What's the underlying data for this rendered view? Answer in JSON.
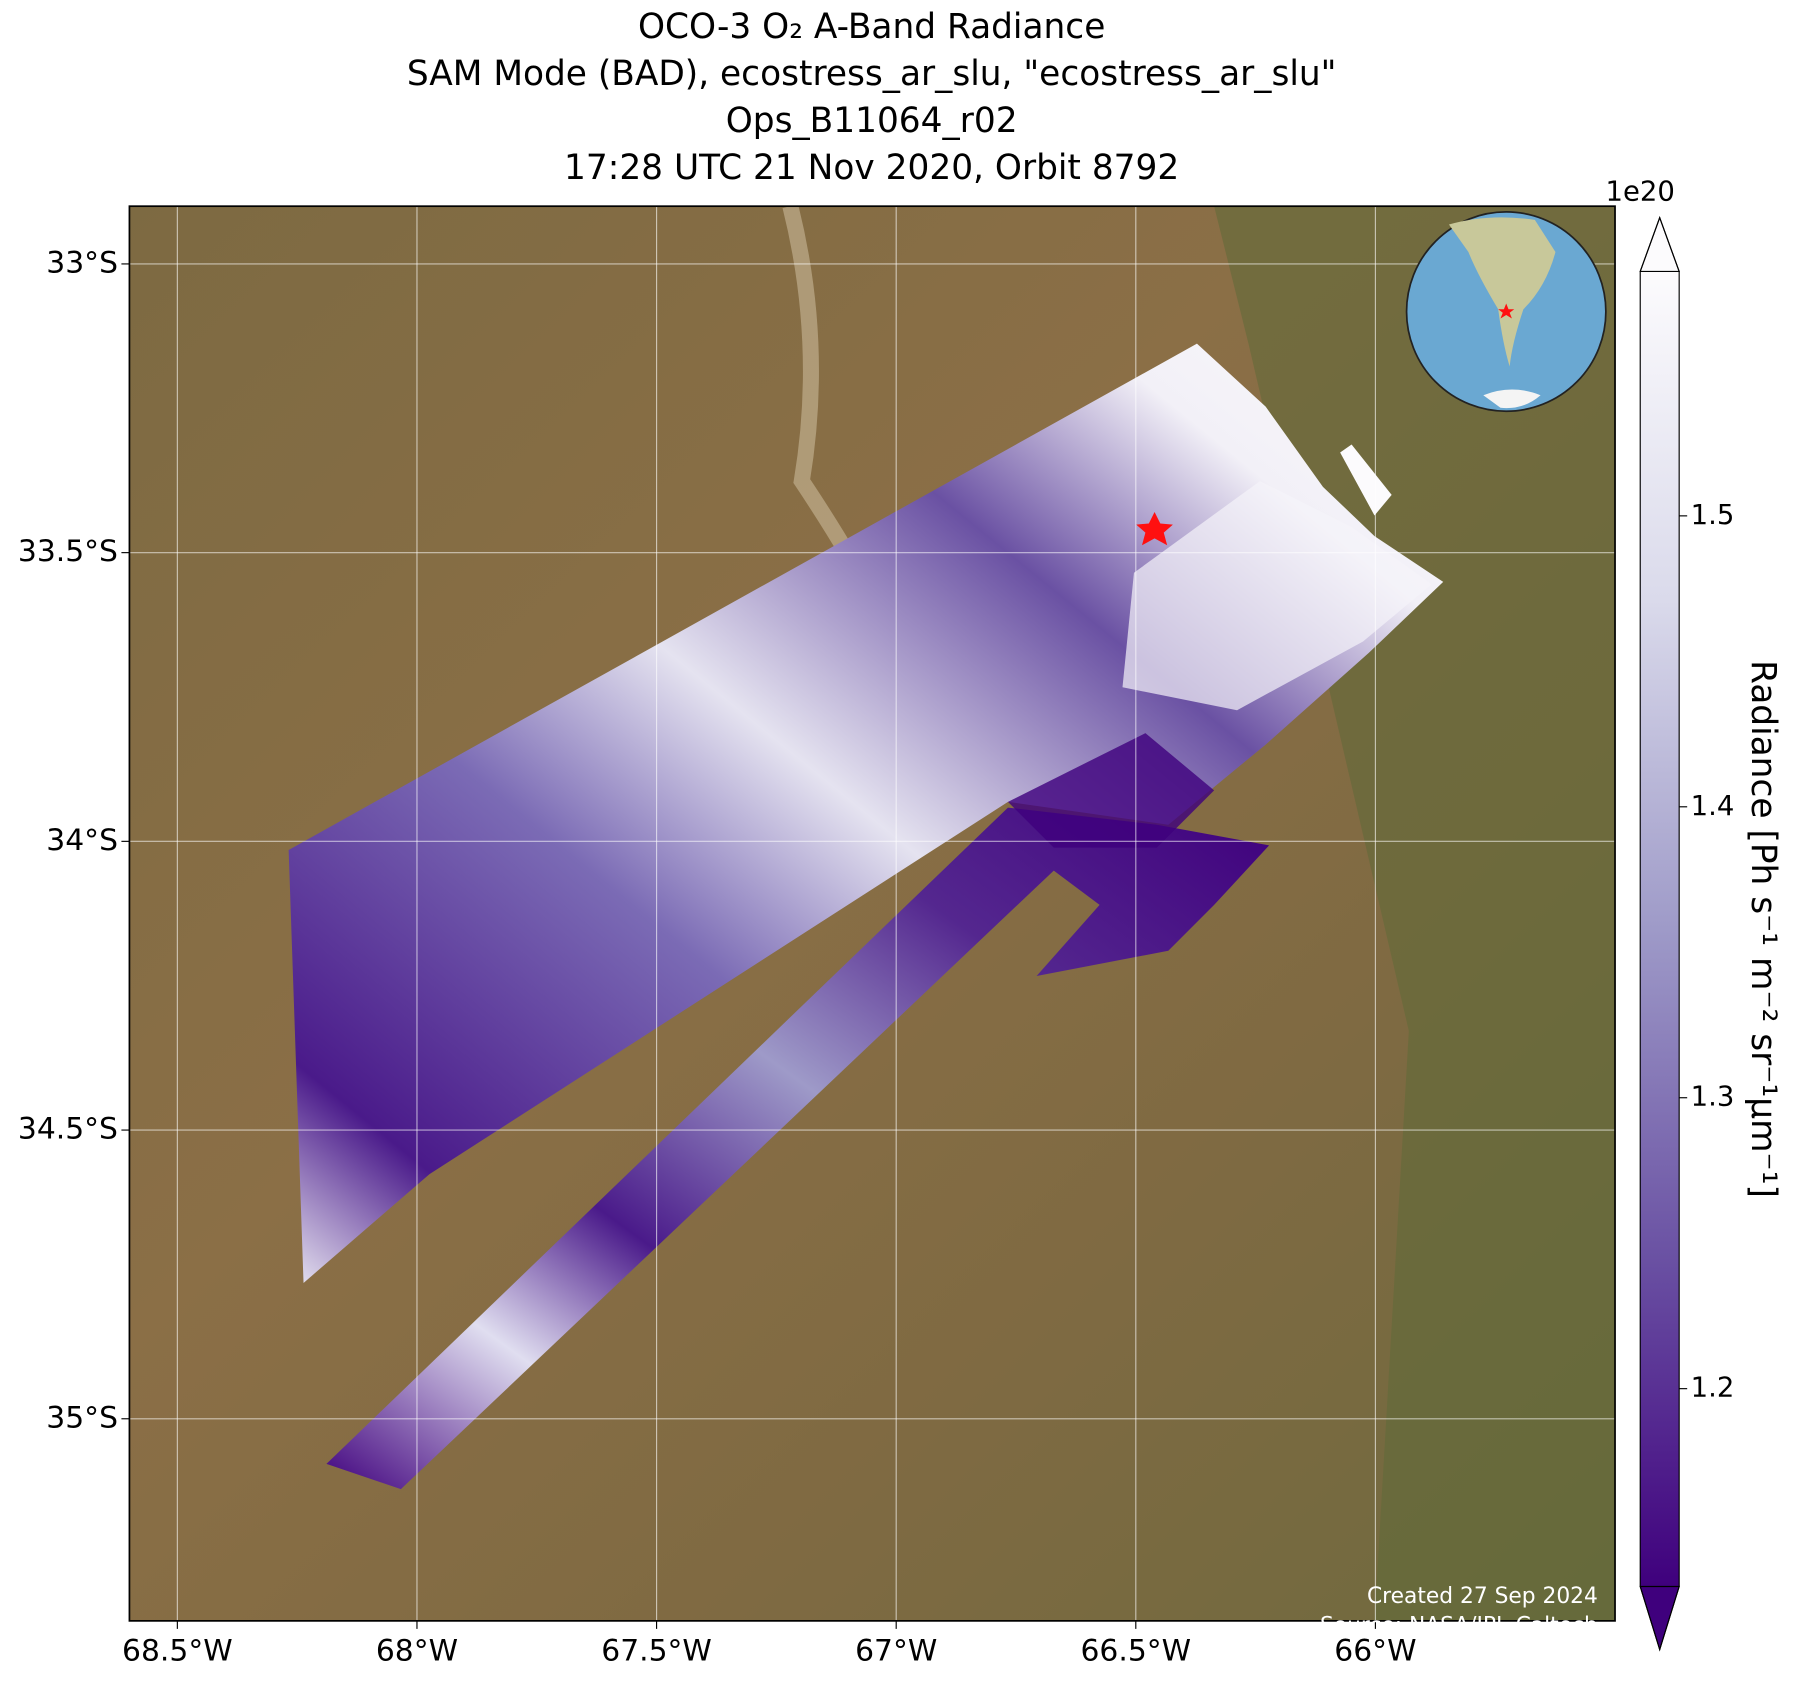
{
  "chart_data": {
    "type": "map",
    "title": [
      "OCO-3 O₂ A-Band Radiance",
      "SAM Mode (BAD), ecostress_ar_slu, \"ecostress_ar_slu\"",
      "Ops_B11064_r02",
      "17:28 UTC 21 Nov 2020, Orbit 8792"
    ],
    "xlim": [
      -68.6,
      -65.5
    ],
    "ylim": [
      -35.35,
      -32.9
    ],
    "xticks": [
      {
        "value": -68.5,
        "label": "68.5°W"
      },
      {
        "value": -68,
        "label": "68°W"
      },
      {
        "value": -67.5,
        "label": "67.5°W"
      },
      {
        "value": -67,
        "label": "67°W"
      },
      {
        "value": -66.5,
        "label": "66.5°W"
      },
      {
        "value": -66,
        "label": "66°W"
      }
    ],
    "yticks": [
      {
        "value": -33,
        "label": "33°S"
      },
      {
        "value": -33.5,
        "label": "33.5°S"
      },
      {
        "value": -34,
        "label": "34°S"
      },
      {
        "value": -34.5,
        "label": "34.5°S"
      },
      {
        "value": -35,
        "label": "35°S"
      }
    ],
    "grid": true,
    "colorbar": {
      "label": "Radiance [Ph s⁻¹ m⁻² sr⁻¹μm⁻¹]",
      "exponent": "1e20",
      "lim": [
        1.132,
        1.584
      ],
      "ticks": [
        1.2,
        1.3,
        1.4,
        1.5
      ],
      "colors": [
        "#3f007d",
        "#6a51a3",
        "#9e9ac8",
        "#dadaeb",
        "#fcfbfd"
      ]
    },
    "notes": [
      "Created 27 Sep 2024",
      "Source: NASA/JPL-Caltech"
    ]
  }
}
